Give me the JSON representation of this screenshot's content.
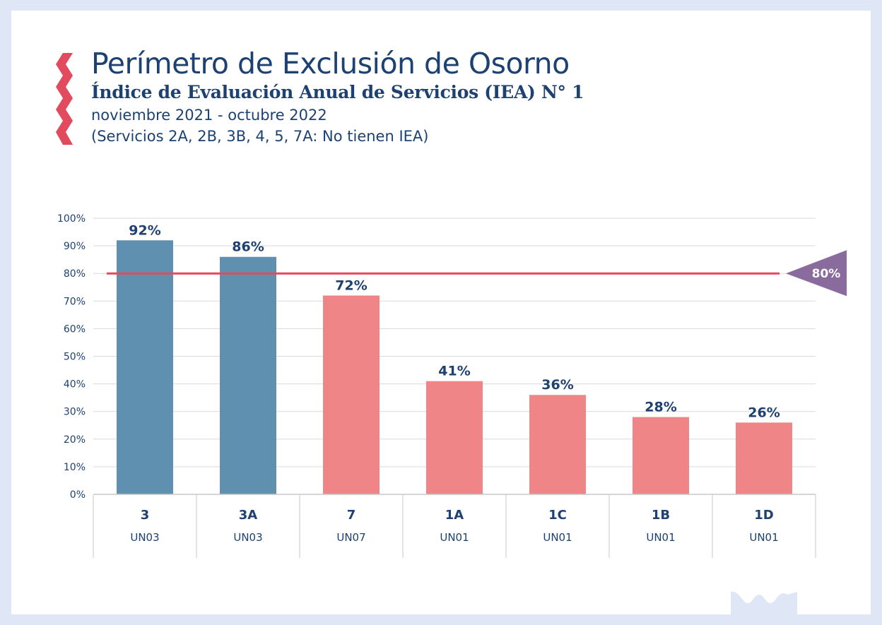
{
  "header": {
    "title": "Perímetro de Exclusión de Osorno",
    "subtitle": "Índice de Evaluación Anual de Servicios (IEA) N° 1",
    "period": "noviembre 2021 - octubre 2022",
    "note": "(Servicios 2A, 2B, 3B, 4, 5, 7A: No tienen IEA)"
  },
  "colors": {
    "above_target": "#6090b0",
    "below_target": "#f08588",
    "target_line": "#e24a5e",
    "target_marker": "#8a6b9e",
    "text": "#1d4170",
    "grid": "#d9d9d9",
    "accent_zigzag": "#e24a5e",
    "frame": "#dfe6f5"
  },
  "chart_data": {
    "type": "bar",
    "categories": [
      "3",
      "3A",
      "7",
      "1A",
      "1C",
      "1B",
      "1D"
    ],
    "category_sublabels": [
      "UN03",
      "UN03",
      "UN07",
      "UN01",
      "UN01",
      "UN01",
      "UN01"
    ],
    "values": [
      92,
      86,
      72,
      41,
      36,
      28,
      26
    ],
    "value_labels": [
      "92%",
      "86%",
      "72%",
      "41%",
      "36%",
      "28%",
      "26%"
    ],
    "ylim": [
      0,
      100
    ],
    "yticks": [
      "0%",
      "10%",
      "20%",
      "30%",
      "40%",
      "50%",
      "60%",
      "70%",
      "80%",
      "90%",
      "100%"
    ],
    "reference_line": {
      "value": 80,
      "label": "80%"
    },
    "grid": true,
    "title": "",
    "xlabel": "",
    "ylabel": ""
  }
}
